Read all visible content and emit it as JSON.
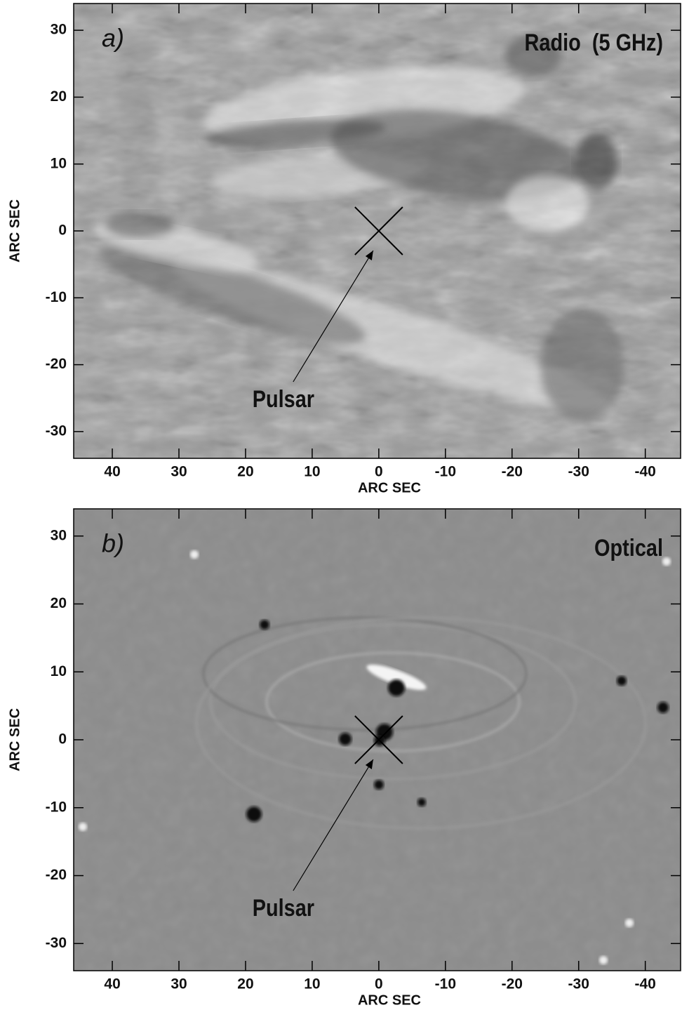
{
  "chart_data": [
    {
      "type": "image",
      "panel_label": "a)",
      "title": "Radio  (5 GHz)",
      "xlabel": "ARC SEC",
      "ylabel": "ARC SEC",
      "annotation": "Pulsar",
      "marker": [
        0,
        0
      ],
      "xlim": [
        45.8,
        -45.3
      ],
      "ylim": [
        -34,
        34
      ],
      "xticks": [
        40,
        30,
        20,
        10,
        0,
        -10,
        -20,
        -30,
        -40
      ],
      "yticks": [
        30,
        20,
        10,
        0,
        -10,
        -20,
        -30
      ]
    },
    {
      "type": "image",
      "panel_label": "b)",
      "title": "Optical",
      "xlabel": "ARC SEC",
      "ylabel": "ARC SEC",
      "annotation": "Pulsar",
      "marker": [
        0,
        0
      ],
      "xlim": [
        45.8,
        -45.3
      ],
      "ylim": [
        -34,
        34
      ],
      "xticks": [
        40,
        30,
        20,
        10,
        0,
        -10,
        -20,
        -30,
        -40
      ],
      "yticks": [
        30,
        20,
        10,
        0,
        -10,
        -20,
        -30
      ]
    }
  ]
}
